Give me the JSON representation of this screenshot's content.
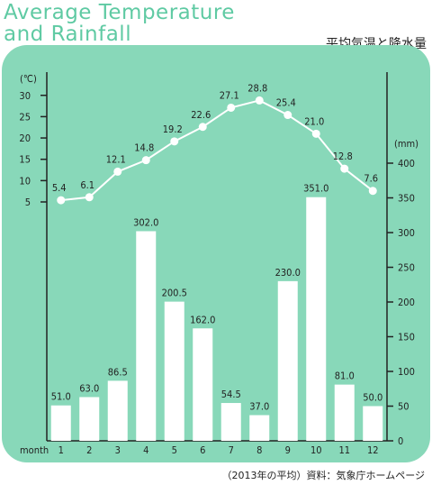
{
  "title_line1": "Average Temperature",
  "title_line2": "and Rainfall",
  "subtitle": "平均気温と降水量",
  "source": "（2013年の平均）資料：気象庁ホームページ",
  "colors": {
    "panel": "#88d8b9",
    "title": "#5fcaa3",
    "bars": "#ffffff",
    "line": "#ffffff",
    "axis": "#222222"
  },
  "chart_data": {
    "type": "bar+line",
    "xlabel": "month",
    "categories": [
      "1",
      "2",
      "3",
      "4",
      "5",
      "6",
      "7",
      "8",
      "9",
      "10",
      "11",
      "12"
    ],
    "series": [
      {
        "type": "bar",
        "axis": "right",
        "values": [
          51.0,
          63.0,
          86.5,
          302.0,
          200.5,
          162.0,
          54.5,
          37.0,
          230.0,
          351.0,
          81.0,
          50.0
        ],
        "labels": [
          "51.0",
          "63.0",
          "86.5",
          "302.0",
          "200.5",
          "162.0",
          "54.5",
          "37.0",
          "230.0",
          "351.0",
          "81.0",
          "50.0"
        ]
      },
      {
        "type": "line",
        "axis": "left",
        "values": [
          5.4,
          6.1,
          12.1,
          14.8,
          19.2,
          22.6,
          27.1,
          28.8,
          25.4,
          21.0,
          12.8,
          7.6
        ],
        "labels": [
          "5.4",
          "6.1",
          "12.1",
          "14.8",
          "19.2",
          "22.6",
          "27.1",
          "28.8",
          "25.4",
          "21.0",
          "12.8",
          "7.6"
        ]
      }
    ],
    "y_left": {
      "label": "(℃)",
      "ticks": [
        "5",
        "10",
        "15",
        "20",
        "25",
        "30"
      ],
      "tick_values": [
        5,
        10,
        15,
        20,
        25,
        30
      ],
      "range": [
        5,
        30
      ]
    },
    "y_right": {
      "label": "(mm)",
      "ticks": [
        "0",
        "50",
        "100",
        "150",
        "200",
        "250",
        "300",
        "350",
        "400"
      ],
      "tick_values": [
        0,
        50,
        100,
        150,
        200,
        250,
        300,
        350,
        400
      ],
      "range": [
        0,
        400
      ]
    },
    "grid": false
  }
}
